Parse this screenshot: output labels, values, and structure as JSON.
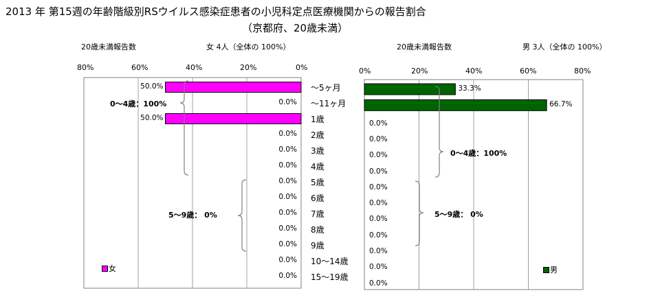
{
  "title": "2013 年 第15週の年齢階級別RSウイルス感染症患者の小児科定点医療機関からの報告割合",
  "subtitle": "（京都府、20歳未満）",
  "colors": {
    "female": "#ff00ff",
    "male": "#006400",
    "plot_border": "#808080",
    "grid": "#a0a0a0",
    "bracket": "#808080"
  },
  "chart_data": [
    {
      "type": "bar",
      "orientation": "horizontal",
      "panel": "left",
      "header_left": "20歳未満報告数",
      "header_right": "女  4人（全体の   100%）",
      "legend": "女",
      "legend_position": "bottom-left",
      "xlim": [
        0,
        80
      ],
      "x_reversed": true,
      "x_ticks": [
        "80%",
        "60%",
        "40%",
        "20%",
        "0%"
      ],
      "categories": [
        "〜5ヶ月",
        "〜11ヶ月",
        "1歳",
        "2歳",
        "3歳",
        "4歳",
        "5歳",
        "6歳",
        "7歳",
        "8歳",
        "9歳",
        "10〜14歳",
        "15〜19歳"
      ],
      "values": [
        50.0,
        0.0,
        50.0,
        0.0,
        0.0,
        0.0,
        0.0,
        0.0,
        0.0,
        0.0,
        0.0,
        0.0,
        0.0
      ],
      "value_labels": [
        "50.0%",
        "0.0%",
        "50.0%",
        "0.0%",
        "0.0%",
        "0.0%",
        "0.0%",
        "0.0%",
        "0.0%",
        "0.0%",
        "0.0%",
        "0.0%",
        "0.0%"
      ],
      "annotations": [
        "0〜4歳：100%",
        "5〜9歳：  0%"
      ],
      "grid": true
    },
    {
      "type": "bar",
      "orientation": "horizontal",
      "panel": "right",
      "header_left": "20歳未満報告数",
      "header_right": "男  3人（全体の   100%）",
      "legend": "男",
      "legend_position": "bottom-right",
      "xlim": [
        0,
        80
      ],
      "x_reversed": false,
      "x_ticks": [
        "0%",
        "20%",
        "40%",
        "60%",
        "80%"
      ],
      "categories": [
        "〜5ヶ月",
        "〜11ヶ月",
        "1歳",
        "2歳",
        "3歳",
        "4歳",
        "5歳",
        "6歳",
        "7歳",
        "8歳",
        "9歳",
        "10〜14歳",
        "15〜19歳"
      ],
      "values": [
        33.3,
        66.7,
        0.0,
        0.0,
        0.0,
        0.0,
        0.0,
        0.0,
        0.0,
        0.0,
        0.0,
        0.0,
        0.0
      ],
      "value_labels": [
        "33.3%",
        "66.7%",
        "0.0%",
        "0.0%",
        "0.0%",
        "0.0%",
        "0.0%",
        "0.0%",
        "0.0%",
        "0.0%",
        "0.0%",
        "0.0%",
        "0.0%"
      ],
      "annotations": [
        "0〜4歳：100%",
        "5〜9歳：  0%"
      ],
      "grid": true
    }
  ]
}
